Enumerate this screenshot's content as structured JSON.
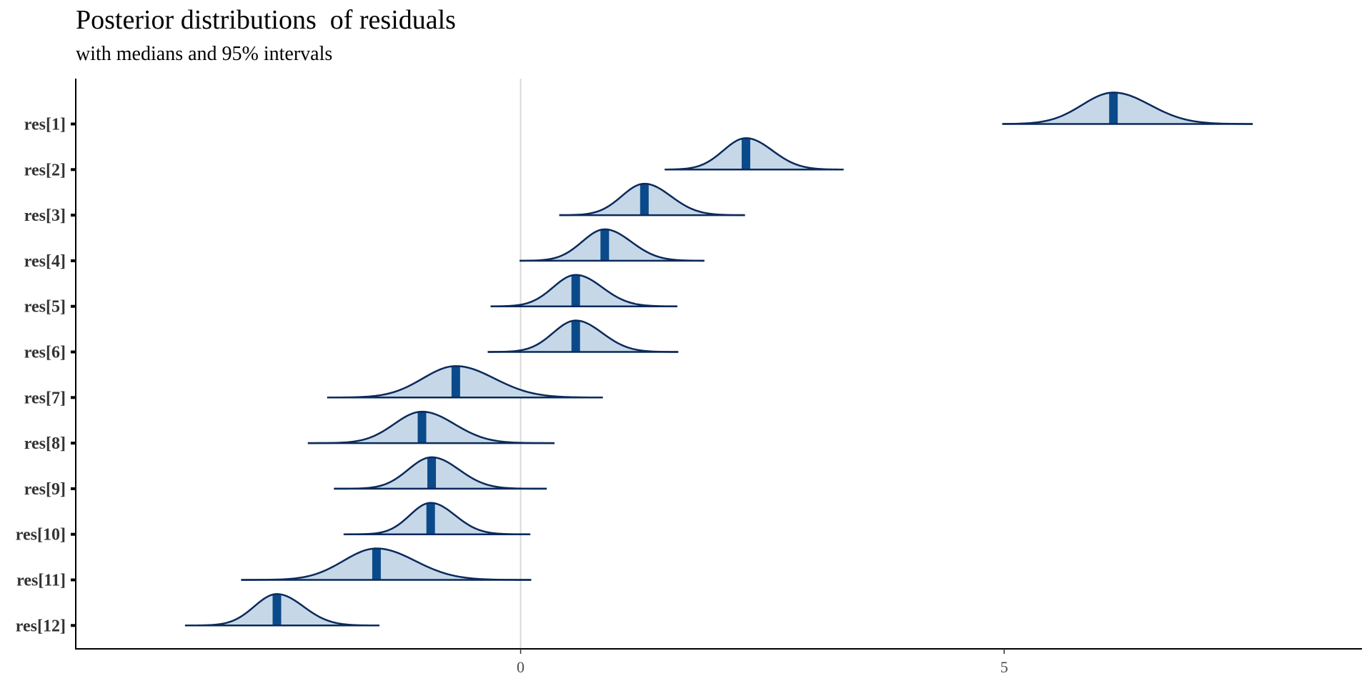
{
  "chart_data": {
    "type": "ridgeline",
    "title": "Posterior distributions  of residuals",
    "subtitle": "with medians and 95% intervals",
    "xlim": [
      -4.6,
      8.7
    ],
    "x_ticks": [
      0,
      5
    ],
    "x_tick_labels": [
      "0",
      "5"
    ],
    "reference_line": 0,
    "grid": false,
    "colors": {
      "fill": "#c6d8e8",
      "outline": "#0b2a5a",
      "median": "#0b4a8a",
      "reference": "#d9d9d9",
      "axis": "#000000"
    },
    "series": [
      {
        "label": "res[1]",
        "median": 6.13,
        "lower": 4.98,
        "upper": 7.57,
        "sd": 0.36
      },
      {
        "label": "res[2]",
        "median": 2.33,
        "lower": 1.49,
        "upper": 3.34,
        "sd": 0.26
      },
      {
        "label": "res[3]",
        "median": 1.28,
        "lower": 0.4,
        "upper": 2.32,
        "sd": 0.26
      },
      {
        "label": "res[4]",
        "median": 0.87,
        "lower": -0.01,
        "upper": 1.9,
        "sd": 0.26
      },
      {
        "label": "res[5]",
        "median": 0.57,
        "lower": -0.31,
        "upper": 1.62,
        "sd": 0.26
      },
      {
        "label": "res[6]",
        "median": 0.57,
        "lower": -0.34,
        "upper": 1.63,
        "sd": 0.26
      },
      {
        "label": "res[7]",
        "median": -0.67,
        "lower": -2.0,
        "upper": 0.85,
        "sd": 0.38
      },
      {
        "label": "res[8]",
        "median": -1.02,
        "lower": -2.2,
        "upper": 0.35,
        "sd": 0.32
      },
      {
        "label": "res[9]",
        "median": -0.92,
        "lower": -1.93,
        "upper": 0.27,
        "sd": 0.27
      },
      {
        "label": "res[10]",
        "median": -0.93,
        "lower": -1.83,
        "upper": 0.1,
        "sd": 0.24
      },
      {
        "label": "res[11]",
        "median": -1.49,
        "lower": -2.89,
        "upper": 0.11,
        "sd": 0.38
      },
      {
        "label": "res[12]",
        "median": -2.52,
        "lower": -3.47,
        "upper": -1.46,
        "sd": 0.26
      }
    ]
  }
}
